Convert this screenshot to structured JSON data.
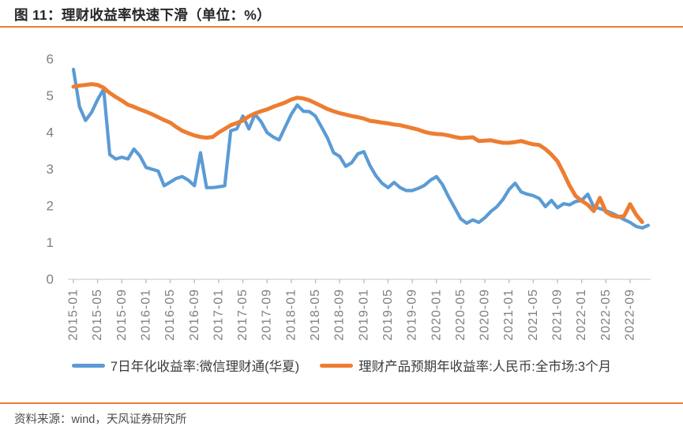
{
  "header": {
    "title": "图 11：理财收益率快速下滑（单位：%）"
  },
  "footer": {
    "source": "资料来源：wind，天风证券研究所"
  },
  "colors": {
    "accent_rule": "#ED7D31",
    "series_blue": "#5B9BD5",
    "series_orange": "#ED7D31",
    "axis_line": "#D9D9D9",
    "tick_mark": "#BFBFBF",
    "axis_label": "#7F7F7F",
    "legend_text": "#3B3B3B"
  },
  "chart_data": {
    "type": "line",
    "title": "理财收益率快速下滑",
    "unit": "%",
    "grid": false,
    "legend_position": "bottom",
    "ylim": [
      0,
      6
    ],
    "yticks": [
      0,
      1,
      2,
      3,
      4,
      5,
      6
    ],
    "xticks": [
      "2015-01",
      "2015-05",
      "2015-09",
      "2016-01",
      "2016-05",
      "2016-09",
      "2017-01",
      "2017-05",
      "2017-09",
      "2018-01",
      "2018-05",
      "2018-09",
      "2019-01",
      "2019-05",
      "2019-09",
      "2020-01",
      "2020-05",
      "2020-09",
      "2021-01",
      "2021-05",
      "2021-09",
      "2022-01",
      "2022-05",
      "2022-09"
    ],
    "x": [
      "2015-01",
      "2015-02",
      "2015-03",
      "2015-04",
      "2015-05",
      "2015-06",
      "2015-07",
      "2015-08",
      "2015-09",
      "2015-10",
      "2015-11",
      "2015-12",
      "2016-01",
      "2016-02",
      "2016-03",
      "2016-04",
      "2016-05",
      "2016-06",
      "2016-07",
      "2016-08",
      "2016-09",
      "2016-10",
      "2016-11",
      "2016-12",
      "2017-01",
      "2017-02",
      "2017-03",
      "2017-04",
      "2017-05",
      "2017-06",
      "2017-07",
      "2017-08",
      "2017-09",
      "2017-10",
      "2017-11",
      "2017-12",
      "2018-01",
      "2018-02",
      "2018-03",
      "2018-04",
      "2018-05",
      "2018-06",
      "2018-07",
      "2018-08",
      "2018-09",
      "2018-10",
      "2018-11",
      "2018-12",
      "2019-01",
      "2019-02",
      "2019-03",
      "2019-04",
      "2019-05",
      "2019-06",
      "2019-07",
      "2019-08",
      "2019-09",
      "2019-10",
      "2019-11",
      "2019-12",
      "2020-01",
      "2020-02",
      "2020-03",
      "2020-04",
      "2020-05",
      "2020-06",
      "2020-07",
      "2020-08",
      "2020-09",
      "2020-10",
      "2020-11",
      "2020-12",
      "2021-01",
      "2021-02",
      "2021-03",
      "2021-04",
      "2021-05",
      "2021-06",
      "2021-07",
      "2021-08",
      "2021-09",
      "2021-10",
      "2021-11",
      "2021-12",
      "2022-01",
      "2022-02",
      "2022-03",
      "2022-04",
      "2022-05",
      "2022-06",
      "2022-07",
      "2022-08",
      "2022-09",
      "2022-10",
      "2022-11",
      "2022-12"
    ],
    "series": [
      {
        "name": "7日年化收益率:微信理财通(华夏)",
        "color": "#5B9BD5",
        "stroke_width": 4.2,
        "values": [
          5.72,
          4.7,
          4.33,
          4.55,
          4.9,
          5.18,
          3.4,
          3.28,
          3.33,
          3.28,
          3.55,
          3.36,
          3.05,
          3.0,
          2.95,
          2.55,
          2.65,
          2.75,
          2.8,
          2.7,
          2.55,
          3.45,
          2.5,
          2.5,
          2.52,
          2.55,
          4.05,
          4.1,
          4.45,
          4.1,
          4.5,
          4.3,
          4.0,
          3.88,
          3.8,
          4.15,
          4.5,
          4.75,
          4.58,
          4.57,
          4.45,
          4.15,
          3.85,
          3.45,
          3.35,
          3.08,
          3.18,
          3.42,
          3.48,
          3.1,
          2.82,
          2.62,
          2.5,
          2.64,
          2.5,
          2.42,
          2.42,
          2.48,
          2.56,
          2.7,
          2.8,
          2.58,
          2.25,
          1.95,
          1.65,
          1.53,
          1.62,
          1.55,
          1.68,
          1.85,
          1.98,
          2.18,
          2.45,
          2.62,
          2.38,
          2.32,
          2.28,
          2.2,
          1.98,
          2.15,
          1.95,
          2.06,
          2.03,
          2.12,
          2.15,
          2.32,
          1.97,
          1.93,
          1.87,
          1.8,
          1.72,
          1.63,
          1.55,
          1.44,
          1.4,
          1.47
        ]
      },
      {
        "name": "理财产品预期年收益率:人民币:全市场:3个月",
        "color": "#ED7D31",
        "stroke_width": 5,
        "values": [
          5.25,
          5.28,
          5.3,
          5.32,
          5.3,
          5.22,
          5.08,
          4.97,
          4.87,
          4.76,
          4.7,
          4.63,
          4.57,
          4.5,
          4.42,
          4.34,
          4.27,
          4.15,
          4.05,
          3.98,
          3.92,
          3.88,
          3.86,
          3.88,
          4.0,
          4.1,
          4.2,
          4.26,
          4.33,
          4.44,
          4.52,
          4.58,
          4.63,
          4.7,
          4.76,
          4.82,
          4.9,
          4.95,
          4.93,
          4.88,
          4.8,
          4.72,
          4.64,
          4.58,
          4.53,
          4.49,
          4.45,
          4.42,
          4.38,
          4.32,
          4.3,
          4.27,
          4.25,
          4.22,
          4.2,
          4.16,
          4.12,
          4.08,
          4.02,
          3.98,
          3.96,
          3.95,
          3.92,
          3.88,
          3.85,
          3.86,
          3.87,
          3.77,
          3.78,
          3.79,
          3.75,
          3.72,
          3.72,
          3.74,
          3.77,
          3.72,
          3.68,
          3.66,
          3.55,
          3.4,
          3.22,
          2.9,
          2.55,
          2.27,
          2.14,
          2.03,
          1.86,
          2.22,
          1.84,
          1.74,
          1.7,
          1.72,
          2.05,
          1.76,
          1.56,
          null
        ]
      }
    ]
  }
}
